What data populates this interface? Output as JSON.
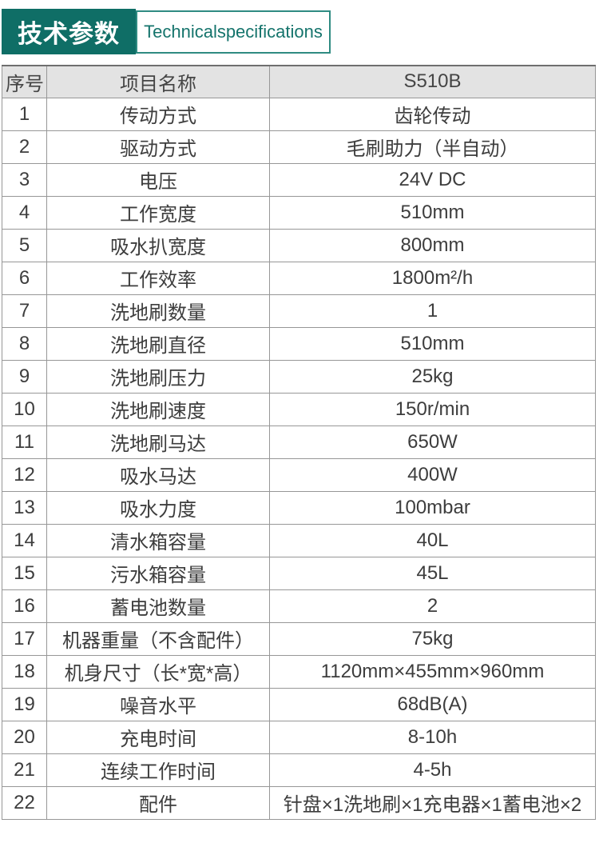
{
  "banner": {
    "title_cn": "技术参数",
    "title_en": "Technicalspecifications"
  },
  "colors": {
    "teal": "#0f6e66",
    "header_row_bg": "#e3e3e3",
    "grid_border": "#979797",
    "text": "#3d3d3d"
  },
  "table": {
    "headers": [
      "序号",
      "项目名称",
      "S510B"
    ],
    "rows": [
      [
        "1",
        "传动方式",
        "齿轮传动"
      ],
      [
        "2",
        "驱动方式",
        "毛刷助力（半自动）"
      ],
      [
        "3",
        "电压",
        "24V DC"
      ],
      [
        "4",
        "工作宽度",
        "510mm"
      ],
      [
        "5",
        "吸水扒宽度",
        "800mm"
      ],
      [
        "6",
        "工作效率",
        "1800m²/h"
      ],
      [
        "7",
        "洗地刷数量",
        "1"
      ],
      [
        "8",
        "洗地刷直径",
        "510mm"
      ],
      [
        "9",
        "洗地刷压力",
        "25kg"
      ],
      [
        "10",
        "洗地刷速度",
        "150r/min"
      ],
      [
        "11",
        "洗地刷马达",
        "650W"
      ],
      [
        "12",
        "吸水马达",
        "400W"
      ],
      [
        "13",
        "吸水力度",
        "100mbar"
      ],
      [
        "14",
        "清水箱容量",
        "40L"
      ],
      [
        "15",
        "污水箱容量",
        "45L"
      ],
      [
        "16",
        "蓄电池数量",
        "2"
      ],
      [
        "17",
        "机器重量（不含配件）",
        "75kg"
      ],
      [
        "18",
        "机身尺寸（长*宽*高）",
        "1120mm×455mm×960mm"
      ],
      [
        "19",
        "噪音水平",
        "68dB(A)"
      ],
      [
        "20",
        "充电时间",
        "8-10h"
      ],
      [
        "21",
        "连续工作时间",
        "4-5h"
      ],
      [
        "22",
        "配件",
        "针盘×1洗地刷×1充电器×1蓄电池×2"
      ]
    ]
  }
}
